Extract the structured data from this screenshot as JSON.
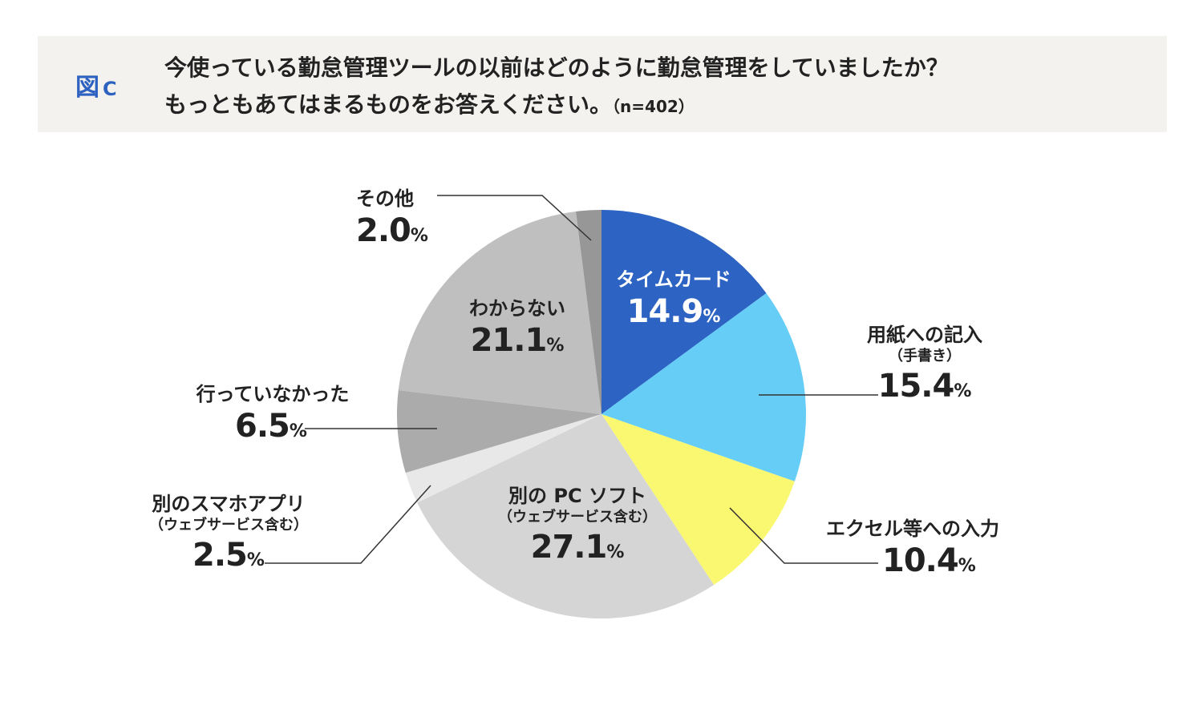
{
  "header": {
    "figure_label": "図",
    "figure_letter": "C",
    "question_line1": "今使っている勤怠管理ツールの以前はどのように勤怠管理をしていましたか？",
    "question_line2": "もっともあてはまるものをお答えください。",
    "sample_size": "（n=402）"
  },
  "chart_data": {
    "type": "pie",
    "title": "今使っている勤怠管理ツールの以前はどのように勤怠管理をしていましたか？ もっともあてはまるものをお答えください。（n=402）",
    "unit": "%",
    "start_angle": "12 o'clock",
    "direction": "clockwise",
    "slices": [
      {
        "label": "タイムカード",
        "sublabel": "",
        "value": 14.9,
        "value_text": "14.9",
        "color": "#2d63c2"
      },
      {
        "label": "用紙への記入",
        "sublabel": "（手書き）",
        "value": 15.4,
        "value_text": "15.4",
        "color": "#66cdf6"
      },
      {
        "label": "エクセル等への入力",
        "sublabel": "",
        "value": 10.4,
        "value_text": "10.4",
        "color": "#faf871"
      },
      {
        "label": "別の PC ソフト",
        "sublabel": "（ウェブサービス含む）",
        "value": 27.1,
        "value_text": "27.1",
        "color": "#d5d5d5"
      },
      {
        "label": "別のスマホアプリ",
        "sublabel": "（ウェブサービス含む）",
        "value": 2.5,
        "value_text": "2.5",
        "color": "#e8e8e8"
      },
      {
        "label": "行っていなかった",
        "sublabel": "",
        "value": 6.5,
        "value_text": "6.5",
        "color": "#ababab"
      },
      {
        "label": "わからない",
        "sublabel": "",
        "value": 21.1,
        "value_text": "21.1",
        "color": "#bfbfbf"
      },
      {
        "label": "その他",
        "sublabel": "",
        "value": 2.0,
        "value_text": "2.0",
        "color": "#979797"
      }
    ]
  }
}
